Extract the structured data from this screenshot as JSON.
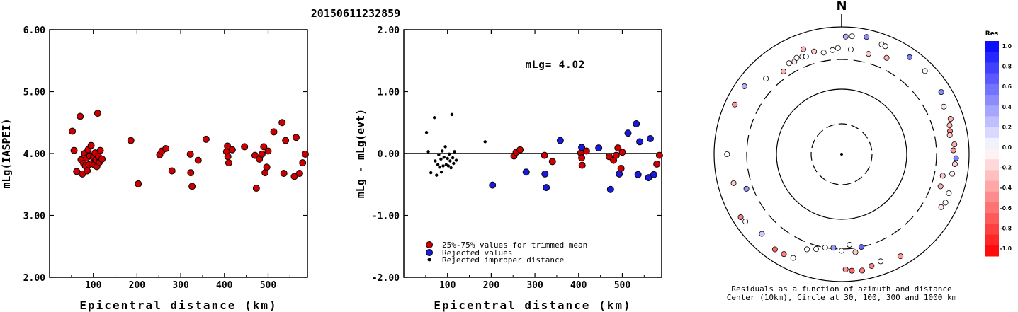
{
  "title": "20150611232859",
  "colors": {
    "trimmed": "#cc0000",
    "rejected": "#1a1adc",
    "improper": "#000000"
  },
  "chart_data": [
    {
      "id": "left",
      "type": "scatter",
      "xlabel": "Epicentral distance (km)",
      "ylabel": "mLg(IASPEI)",
      "xlim": [
        0,
        590
      ],
      "ylim": [
        2.0,
        6.0
      ],
      "xticks": [
        100,
        200,
        300,
        400,
        500
      ],
      "xtick_labels": [
        "100",
        "200",
        "300",
        "400",
        "500"
      ],
      "yticks": [
        2.0,
        3.0,
        4.0,
        5.0,
        6.0
      ],
      "ytick_labels": [
        "2.00",
        "3.00",
        "4.00",
        "5.00",
        "6.00"
      ],
      "points": [
        [
          52,
          4.36
        ],
        [
          56,
          4.05
        ],
        [
          62,
          3.71
        ],
        [
          70,
          4.6
        ],
        [
          72,
          3.9
        ],
        [
          75,
          3.67
        ],
        [
          78,
          3.84
        ],
        [
          80,
          4.0
        ],
        [
          82,
          3.8
        ],
        [
          85,
          3.93
        ],
        [
          86,
          3.72
        ],
        [
          88,
          4.06
        ],
        [
          90,
          3.82
        ],
        [
          92,
          3.96
        ],
        [
          95,
          4.13
        ],
        [
          97,
          3.84
        ],
        [
          100,
          3.94
        ],
        [
          102,
          3.82
        ],
        [
          104,
          4.01
        ],
        [
          106,
          3.9
        ],
        [
          108,
          3.79
        ],
        [
          110,
          4.65
        ],
        [
          112,
          3.95
        ],
        [
          114,
          3.86
        ],
        [
          116,
          4.05
        ],
        [
          120,
          3.91
        ],
        [
          186,
          4.21
        ],
        [
          203,
          3.51
        ],
        [
          252,
          3.98
        ],
        [
          257,
          4.04
        ],
        [
          266,
          4.08
        ],
        [
          280,
          3.72
        ],
        [
          322,
          3.99
        ],
        [
          323,
          3.69
        ],
        [
          326,
          3.47
        ],
        [
          340,
          3.89
        ],
        [
          358,
          4.23
        ],
        [
          405,
          4.03
        ],
        [
          407,
          4.12
        ],
        [
          408,
          3.95
        ],
        [
          410,
          3.85
        ],
        [
          418,
          4.06
        ],
        [
          446,
          4.11
        ],
        [
          470,
          3.97
        ],
        [
          473,
          3.44
        ],
        [
          480,
          3.91
        ],
        [
          486,
          3.99
        ],
        [
          490,
          4.11
        ],
        [
          493,
          3.69
        ],
        [
          497,
          3.78
        ],
        [
          500,
          4.04
        ],
        [
          513,
          4.35
        ],
        [
          532,
          4.5
        ],
        [
          536,
          3.68
        ],
        [
          540,
          4.21
        ],
        [
          560,
          3.63
        ],
        [
          564,
          4.26
        ],
        [
          572,
          3.68
        ],
        [
          579,
          3.85
        ],
        [
          585,
          3.99
        ]
      ]
    },
    {
      "id": "middle",
      "type": "scatter",
      "xlabel": "Epicentral distance (km)",
      "ylabel": "mLg - mLg(evt)",
      "xlim": [
        0,
        590
      ],
      "ylim": [
        -2.0,
        2.0
      ],
      "xticks": [
        100,
        200,
        300,
        400,
        500
      ],
      "xtick_labels": [
        "100",
        "200",
        "300",
        "400",
        "500"
      ],
      "yticks": [
        -2.0,
        -1.0,
        0.0,
        1.0,
        2.0
      ],
      "ytick_labels": [
        "-2.00",
        "-1.00",
        "0.00",
        "1.00",
        "2.00"
      ],
      "annotation": "mLg= 4.02",
      "legend": [
        {
          "key": "trimmed",
          "label": "25%-75% values for trimmed mean"
        },
        {
          "key": "rejected",
          "label": "Rejected values"
        },
        {
          "key": "improper",
          "label": "Rejected improper distance"
        }
      ],
      "series": [
        {
          "key": "improper",
          "points": [
            [
              52,
              0.34
            ],
            [
              56,
              0.03
            ],
            [
              62,
              -0.31
            ],
            [
              70,
              0.58
            ],
            [
              72,
              -0.12
            ],
            [
              75,
              -0.35
            ],
            [
              78,
              -0.18
            ],
            [
              80,
              -0.02
            ],
            [
              82,
              -0.22
            ],
            [
              85,
              -0.09
            ],
            [
              86,
              -0.3
            ],
            [
              88,
              0.04
            ],
            [
              90,
              -0.2
            ],
            [
              92,
              -0.06
            ],
            [
              95,
              0.11
            ],
            [
              97,
              -0.18
            ],
            [
              100,
              -0.08
            ],
            [
              102,
              -0.2
            ],
            [
              104,
              -0.01
            ],
            [
              106,
              -0.12
            ],
            [
              108,
              -0.23
            ],
            [
              110,
              0.63
            ],
            [
              112,
              -0.07
            ],
            [
              114,
              -0.16
            ],
            [
              116,
              0.03
            ],
            [
              120,
              -0.11
            ],
            [
              186,
              0.19
            ]
          ]
        },
        {
          "key": "trimmed",
          "points": [
            [
              252,
              -0.04
            ],
            [
              257,
              0.02
            ],
            [
              266,
              0.06
            ],
            [
              322,
              -0.03
            ],
            [
              340,
              -0.13
            ],
            [
              405,
              0.01
            ],
            [
              407,
              -0.07
            ],
            [
              408,
              -0.19
            ],
            [
              418,
              0.04
            ],
            [
              470,
              -0.05
            ],
            [
              480,
              -0.11
            ],
            [
              486,
              -0.03
            ],
            [
              490,
              0.09
            ],
            [
              497,
              -0.24
            ],
            [
              500,
              0.02
            ],
            [
              579,
              -0.17
            ],
            [
              585,
              -0.03
            ]
          ]
        },
        {
          "key": "rejected",
          "points": [
            [
              203,
              -0.51
            ],
            [
              280,
              -0.3
            ],
            [
              323,
              -0.33
            ],
            [
              326,
              -0.55
            ],
            [
              358,
              0.21
            ],
            [
              407,
              0.1
            ],
            [
              446,
              0.09
            ],
            [
              473,
              -0.58
            ],
            [
              493,
              -0.33
            ],
            [
              513,
              0.33
            ],
            [
              532,
              0.48
            ],
            [
              536,
              -0.34
            ],
            [
              540,
              0.19
            ],
            [
              560,
              -0.39
            ],
            [
              564,
              0.24
            ],
            [
              572,
              -0.34
            ]
          ]
        }
      ]
    },
    {
      "id": "polar",
      "type": "scatter",
      "caption_lines": [
        "Residuals as a function of azimuth and distance",
        "Center (10km), Circle at 30, 100, 300 and 1000 km"
      ],
      "north_label": "N",
      "colorbar": {
        "title": "Res",
        "tick_labels": [
          "1.0",
          "0.8",
          "0.6",
          "0.4",
          "0.2",
          "0.0",
          "-0.2",
          "-0.4",
          "-0.6",
          "-0.8",
          "-1.0"
        ],
        "max": 1.0,
        "min": -1.0
      },
      "points_azimuth_deg_distance_km_residual": [
        [
          2,
          700,
          0.3
        ],
        [
          5,
          720,
          0.0
        ],
        [
          12,
          760,
          0.45
        ],
        [
          20,
          680,
          0.02
        ],
        [
          22,
          670,
          0.0
        ],
        [
          35,
          720,
          0.5
        ],
        [
          45,
          700,
          -0.05
        ],
        [
          58,
          690,
          0.45
        ],
        [
          65,
          580,
          -0.1
        ],
        [
          72,
          620,
          -0.3
        ],
        [
          75,
          560,
          -0.3
        ],
        [
          78,
          540,
          -0.5
        ],
        [
          80,
          520,
          -0.2
        ],
        [
          85,
          590,
          -0.3
        ],
        [
          88,
          560,
          -0.4
        ],
        [
          92,
          620,
          0.5
        ],
        [
          95,
          600,
          -0.2
        ],
        [
          100,
          570,
          -0.05
        ],
        [
          110,
          610,
          0.0
        ],
        [
          115,
          620,
          0.0
        ],
        [
          118,
          580,
          -0.1
        ],
        [
          108,
          420,
          -0.3
        ],
        [
          102,
          410,
          -0.2
        ],
        [
          150,
          700,
          -0.4
        ],
        [
          160,
          610,
          0.0
        ],
        [
          165,
          650,
          -0.5
        ],
        [
          170,
          710,
          -0.5
        ],
        [
          175,
          680,
          -0.6
        ],
        [
          178,
          640,
          -0.4
        ],
        [
          172,
          350,
          -0.2
        ],
        [
          168,
          300,
          0.6
        ],
        [
          175,
          260,
          0.0
        ],
        [
          180,
          320,
          0.0
        ],
        [
          185,
          290,
          0.4
        ],
        [
          190,
          300,
          0.0
        ],
        [
          195,
          340,
          0.0
        ],
        [
          200,
          380,
          0.0
        ],
        [
          205,
          620,
          0.0
        ],
        [
          210,
          640,
          -0.5
        ],
        [
          215,
          660,
          -0.6
        ],
        [
          225,
          580,
          0.2
        ],
        [
          235,
          690,
          0.0
        ],
        [
          238,
          730,
          -0.5
        ],
        [
          255,
          560,
          -0.2
        ],
        [
          270,
          620,
          0.0
        ],
        [
          295,
          700,
          -0.4
        ],
        [
          305,
          720,
          0.3
        ],
        [
          315,
          470,
          0.0
        ],
        [
          325,
          380,
          -0.3
        ],
        [
          330,
          440,
          0.0
        ],
        [
          333,
          420,
          -0.1
        ],
        [
          335,
          460,
          0.0
        ],
        [
          338,
          440,
          0.0
        ],
        [
          340,
          420,
          0.0
        ],
        [
          345,
          460,
          -0.2
        ],
        [
          350,
          410,
          0.0
        ],
        [
          355,
          430,
          0.0
        ],
        [
          358,
          460,
          0.0
        ],
        [
          5,
          440,
          0.0
        ],
        [
          15,
          420,
          -0.2
        ],
        [
          25,
          460,
          -0.3
        ],
        [
          340,
          560,
          -0.3
        ],
        [
          250,
          380,
          0.4
        ]
      ]
    }
  ]
}
